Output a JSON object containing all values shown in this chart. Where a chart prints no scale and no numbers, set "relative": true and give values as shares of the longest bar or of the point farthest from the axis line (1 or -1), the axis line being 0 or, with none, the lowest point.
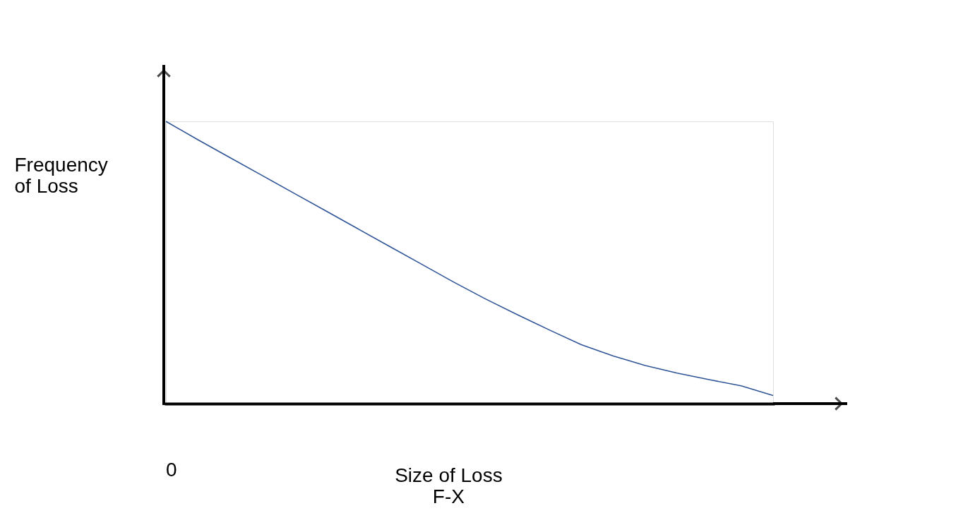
{
  "chart_data": {
    "type": "line",
    "relative": true,
    "xlabel": "Size of Loss\nF-X",
    "ylabel": "Frequency\nof Loss",
    "categories": [
      null,
      null,
      null,
      null,
      null,
      null,
      null,
      null,
      null,
      null,
      null,
      null,
      null,
      null,
      null,
      null,
      null,
      null,
      null,
      null
    ],
    "series": [
      {
        "color": "#2f5597",
        "values": [
          1,
          0.935,
          0.872,
          0.809,
          0.746,
          0.683,
          0.62,
          0.557,
          0.494,
          0.431,
          0.371,
          0.315,
          0.261,
          0.209,
          0.169,
          0.135,
          0.108,
          0.085,
          0.063,
          0.029
        ]
      }
    ],
    "annotations": [
      "0"
    ],
    "marker": "none",
    "line_style": "solid"
  }
}
